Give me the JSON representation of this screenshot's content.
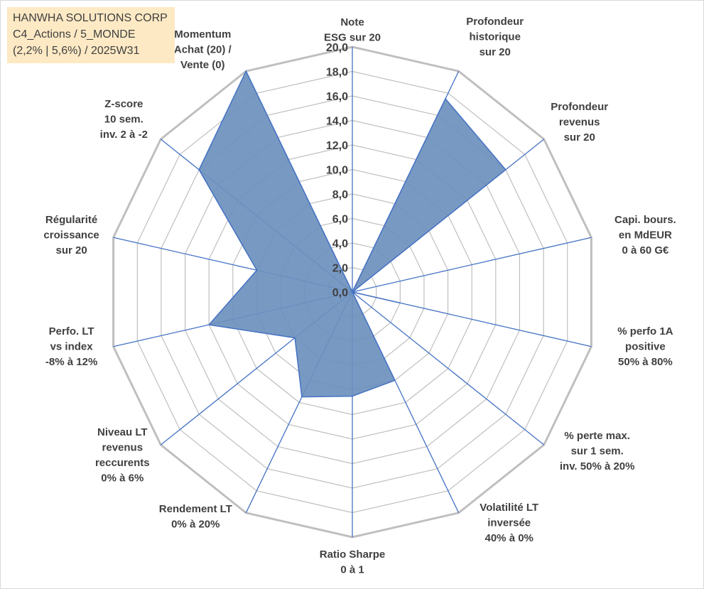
{
  "title_box": {
    "line1": "HANWHA SOLUTIONS CORP",
    "line2": "C4_Actions / 5_MONDE",
    "line3": "(2,2% | 5,6%) / 2025W31"
  },
  "chart_data": {
    "type": "radar",
    "title": "HANWHA SOLUTIONS CORP",
    "rlim": [
      0,
      20
    ],
    "rticks": [
      "0,0",
      "2,0",
      "4,0",
      "6,0",
      "8,0",
      "10,0",
      "12,0",
      "14,0",
      "16,0",
      "18,0",
      "20,0"
    ],
    "grid": true,
    "colors": {
      "fill": "#6d90bd",
      "stroke": "#4472c4",
      "grid": "#bfbfbf",
      "spoke": "#4472c4"
    },
    "categories": [
      [
        "Note",
        "ESG sur 20"
      ],
      [
        "Profondeur",
        "historique",
        "sur 20"
      ],
      [
        "Profondeur",
        "revenus",
        "sur 20"
      ],
      [
        "Capi. bours.",
        "en MdEUR",
        "0 à 60 G€"
      ],
      [
        "% perfo 1A",
        "positive",
        "50% à 80%"
      ],
      [
        "% perte max.",
        "sur 1 sem.",
        "inv. 50% à 20%"
      ],
      [
        "Volatilité LT",
        "inversée",
        "40% à 0%"
      ],
      [
        "Ratio Sharpe",
        "0 à 1"
      ],
      [
        "Rendement LT",
        "0% à 20%"
      ],
      [
        "Niveau LT",
        "revenus",
        "reccurents",
        "0% à 6%"
      ],
      [
        "Perfo. LT",
        "vs index",
        "-8% à 12%"
      ],
      [
        "Régularité",
        "croissance",
        "sur 20"
      ],
      [
        "Z-score",
        "10 sem.",
        "inv. 2 à -2"
      ],
      [
        "Momentum",
        "Achat (20) /",
        "Vente (0)"
      ]
    ],
    "series": [
      {
        "values": [
          0.0,
          17.5,
          16.0,
          0.0,
          4.0,
          0.0,
          8.0,
          8.5,
          9.5,
          6.0,
          12.0,
          8.0,
          16.0,
          20.0
        ]
      }
    ]
  }
}
